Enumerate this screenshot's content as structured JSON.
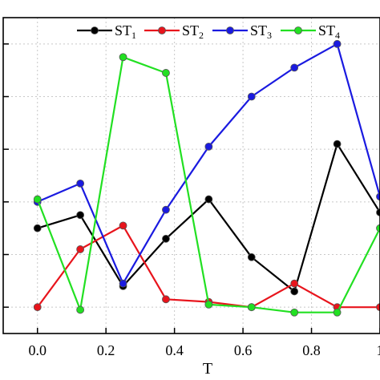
{
  "chart_data": {
    "type": "line",
    "xlabel": "T",
    "ylabel": "",
    "x": [
      0.0,
      0.125,
      0.25,
      0.375,
      0.5,
      0.625,
      0.75,
      0.875,
      1.0
    ],
    "x_ticks": [
      "0.0",
      "0.2",
      "0.4",
      "0.6",
      "0.8",
      "1"
    ],
    "xlim": [
      -0.1,
      1.0
    ],
    "ylim": [
      -0.1,
      1.1
    ],
    "grid": true,
    "legend": "top",
    "series": [
      {
        "name": "ST",
        "subscript": "1",
        "color": "#000000",
        "values": [
          0.3,
          0.35,
          0.08,
          0.26,
          0.41,
          0.19,
          0.06,
          0.62,
          0.36
        ]
      },
      {
        "name": "ST",
        "subscript": "2",
        "color": "#e8141c",
        "values": [
          0.0,
          0.22,
          0.31,
          0.03,
          0.02,
          0.0,
          0.09,
          0.0,
          0.0
        ]
      },
      {
        "name": "ST",
        "subscript": "3",
        "color": "#1a1ae0",
        "values": [
          0.4,
          0.47,
          0.09,
          0.37,
          0.61,
          0.8,
          0.91,
          1.0,
          0.42
        ]
      },
      {
        "name": "ST",
        "subscript": "4",
        "color": "#22e022",
        "values": [
          0.41,
          -0.01,
          0.95,
          0.89,
          0.01,
          0.0,
          -0.02,
          -0.02,
          0.3
        ]
      }
    ]
  }
}
